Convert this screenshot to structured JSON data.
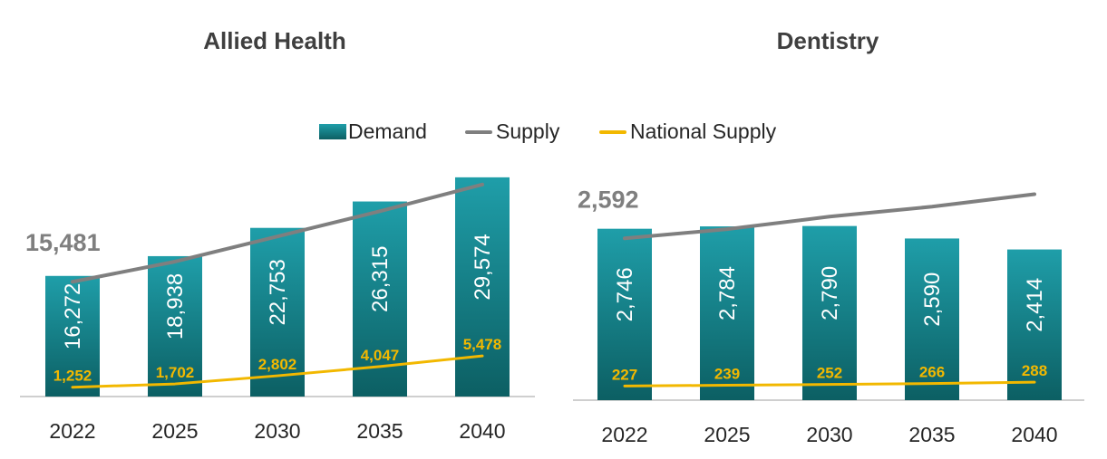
{
  "legend": {
    "demand": "Demand",
    "supply": "Supply",
    "national": "National Supply"
  },
  "colors": {
    "bar_top": "#1f9ea9",
    "bar_bottom": "#0c5f63",
    "supply": "#7f7f7f",
    "national": "#f2b800",
    "axis": "#bfbfbf"
  },
  "chart_data": [
    {
      "type": "bar",
      "title": "Allied Health",
      "categories": [
        "2022",
        "2025",
        "2030",
        "2035",
        "2040"
      ],
      "series": [
        {
          "name": "Demand",
          "type": "bar",
          "values": [
            16272,
            18938,
            22753,
            26315,
            29574
          ],
          "labels": [
            "16,272",
            "18,938",
            "22,753",
            "26,315",
            "29,574"
          ]
        },
        {
          "name": "Supply",
          "type": "line",
          "values": [
            15481,
            18200,
            21600,
            25000,
            28600
          ],
          "labels": [
            "15,481",
            "",
            "",
            "",
            ""
          ]
        },
        {
          "name": "National Supply",
          "type": "line",
          "values": [
            1252,
            1702,
            2802,
            4047,
            5478
          ],
          "labels": [
            "1,252",
            "1,702",
            "2,802",
            "4,047",
            "5,478"
          ]
        }
      ],
      "ylim": [
        0,
        32000
      ]
    },
    {
      "type": "bar",
      "title": "Dentistry",
      "categories": [
        "2022",
        "2025",
        "2030",
        "2035",
        "2040"
      ],
      "series": [
        {
          "name": "Demand",
          "type": "bar",
          "values": [
            2746,
            2784,
            2790,
            2590,
            2414
          ],
          "labels": [
            "2,746",
            "2,784",
            "2,790",
            "2,590",
            "2,414"
          ]
        },
        {
          "name": "Supply",
          "type": "line",
          "values": [
            2592,
            2740,
            2940,
            3100,
            3300
          ],
          "labels": [
            "2,592",
            "",
            "",
            "",
            ""
          ]
        },
        {
          "name": "National Supply",
          "type": "line",
          "values": [
            227,
            239,
            252,
            266,
            288
          ],
          "labels": [
            "227",
            "239",
            "252",
            "266",
            "288"
          ]
        }
      ],
      "ylim": [
        0,
        3800
      ]
    }
  ]
}
